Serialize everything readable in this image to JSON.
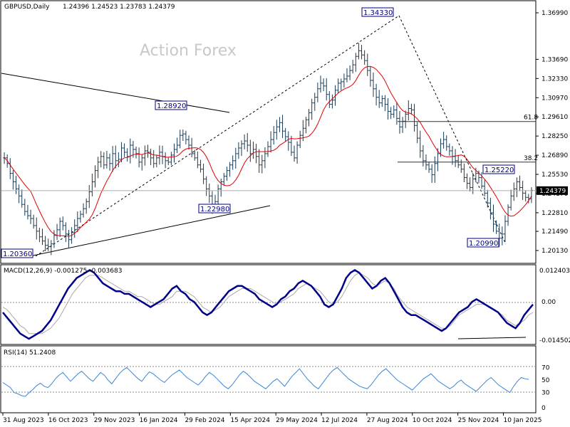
{
  "header": {
    "symbol": "GBPUSD,Daily",
    "ohlc": "1.24396 1.24523 1.23783 1.24379"
  },
  "watermark": "Action Forex",
  "colors": {
    "price_bars": "#1a3a52",
    "ma": "#e00000",
    "macd_line": "#00008b",
    "macd_signal": "#a9a9a9",
    "rsi_line": "#3a86d6",
    "level_box": "#000080"
  },
  "chart_data": [
    {
      "type": "bar",
      "name": "price",
      "y_ticks": [
        "1.36990",
        "1.33690",
        "1.32330",
        "1.30970",
        "1.29610",
        "1.28250",
        "1.26890",
        "1.25530",
        "1.24170",
        "1.22810",
        "1.21490",
        "1.20130"
      ],
      "ylim": [
        1.2013,
        1.3699
      ],
      "last_price_label": "1.24379",
      "last_price": 1.24379,
      "x_ticks": [
        "31 Aug 2023",
        "16 Oct 2023",
        "29 Nov 2023",
        "16 Jan 2024",
        "29 Feb 2024",
        "15 Apr 2024",
        "29 May 2024",
        "12 Jul 2024",
        "27 Aug 2024",
        "10 Oct 2024",
        "25 Nov 2024",
        "10 Jan 2025"
      ],
      "closes": [
        1.267,
        1.263,
        1.256,
        1.25,
        1.245,
        1.24,
        1.234,
        1.229,
        1.226,
        1.224,
        1.219,
        1.215,
        1.211,
        1.208,
        1.205,
        1.204,
        1.206,
        1.212,
        1.216,
        1.222,
        1.219,
        1.213,
        1.209,
        1.214,
        1.219,
        1.224,
        1.227,
        1.231,
        1.236,
        1.243,
        1.25,
        1.258,
        1.264,
        1.268,
        1.262,
        1.267,
        1.263,
        1.27,
        1.265,
        1.266,
        1.274,
        1.271,
        1.268,
        1.276,
        1.273,
        1.27,
        1.264,
        1.267,
        1.272,
        1.271,
        1.267,
        1.263,
        1.267,
        1.271,
        1.268,
        1.265,
        1.264,
        1.269,
        1.273,
        1.276,
        1.283,
        1.284,
        1.28,
        1.276,
        1.27,
        1.267,
        1.262,
        1.259,
        1.252,
        1.245,
        1.24,
        1.233,
        1.236,
        1.245,
        1.25,
        1.254,
        1.258,
        1.262,
        1.265,
        1.27,
        1.274,
        1.277,
        1.279,
        1.276,
        1.27,
        1.273,
        1.268,
        1.262,
        1.265,
        1.27,
        1.275,
        1.28,
        1.285,
        1.289,
        1.292,
        1.286,
        1.282,
        1.278,
        1.271,
        1.267,
        1.276,
        1.283,
        1.288,
        1.294,
        1.299,
        1.306,
        1.31,
        1.316,
        1.32,
        1.318,
        1.312,
        1.305,
        1.308,
        1.315,
        1.32,
        1.321,
        1.323,
        1.325,
        1.329,
        1.333,
        1.339,
        1.343,
        1.34,
        1.336,
        1.329,
        1.322,
        1.316,
        1.31,
        1.306,
        1.309,
        1.305,
        1.3,
        1.298,
        1.301,
        1.295,
        1.289,
        1.293,
        1.298,
        1.302,
        1.301,
        1.29,
        1.281,
        1.272,
        1.265,
        1.262,
        1.259,
        1.255,
        1.263,
        1.27,
        1.277,
        1.28,
        1.275,
        1.272,
        1.268,
        1.265,
        1.262,
        1.259,
        1.253,
        1.249,
        1.246,
        1.252,
        1.256,
        1.253,
        1.247,
        1.242,
        1.235,
        1.228,
        1.22,
        1.215,
        1.21,
        1.213,
        1.222,
        1.232,
        1.24,
        1.245,
        1.25,
        1.246,
        1.242,
        1.239,
        1.238,
        1.244
      ],
      "levels": [
        {
          "label": "1.34330",
          "value": 1.3433
        },
        {
          "label": "1.28920",
          "value": 1.2892
        },
        {
          "label": "1.22980",
          "value": 1.2298
        },
        {
          "label": "1.20360",
          "value": 1.2036
        },
        {
          "label": "1.25220",
          "value": 1.2522
        },
        {
          "label": "1.20990",
          "value": 1.2099
        }
      ],
      "fib_levels": [
        {
          "label": "61.8",
          "value": 1.2928
        },
        {
          "label": "38.2",
          "value": 1.264
        }
      ]
    },
    {
      "type": "line",
      "name": "MACD",
      "label": "MACD(12,26,9) -0.001275 -0.003683",
      "y_ticks": [
        "0.012403",
        "0.00",
        "-0.014502"
      ],
      "ylim": [
        -0.0145,
        0.0124
      ],
      "zero_label": "0.00",
      "values": [
        -0.004,
        -0.006,
        -0.008,
        -0.01,
        -0.012,
        -0.013,
        -0.014,
        -0.013,
        -0.012,
        -0.011,
        -0.009,
        -0.007,
        -0.004,
        -0.001,
        0.002,
        0.005,
        0.007,
        0.009,
        0.01,
        0.011,
        0.012,
        0.011,
        0.009,
        0.007,
        0.006,
        0.005,
        0.004,
        0.004,
        0.003,
        0.003,
        0.002,
        0.001,
        0.0,
        -0.001,
        -0.002,
        -0.001,
        0.0,
        0.001,
        0.003,
        0.005,
        0.006,
        0.004,
        0.003,
        0.001,
        0.0,
        -0.002,
        -0.004,
        -0.005,
        -0.004,
        -0.002,
        0.0,
        0.002,
        0.004,
        0.005,
        0.006,
        0.006,
        0.005,
        0.004,
        0.003,
        0.001,
        0.0,
        -0.001,
        -0.002,
        -0.001,
        0.001,
        0.002,
        0.004,
        0.005,
        0.007,
        0.008,
        0.007,
        0.006,
        0.004,
        0.002,
        -0.001,
        -0.002,
        -0.001,
        0.002,
        0.005,
        0.009,
        0.011,
        0.012,
        0.011,
        0.009,
        0.007,
        0.005,
        0.006,
        0.008,
        0.009,
        0.007,
        0.004,
        0.001,
        -0.002,
        -0.004,
        -0.005,
        -0.005,
        -0.006,
        -0.007,
        -0.008,
        -0.009,
        -0.01,
        -0.011,
        -0.01,
        -0.008,
        -0.006,
        -0.004,
        -0.003,
        -0.002,
        0.0,
        0.001,
        0.0,
        -0.001,
        -0.002,
        -0.003,
        -0.004,
        -0.006,
        -0.008,
        -0.009,
        -0.01,
        -0.008,
        -0.005,
        -0.003,
        -0.001
      ],
      "signal": [
        -0.002,
        -0.003,
        -0.005,
        -0.007,
        -0.009,
        -0.01,
        -0.012,
        -0.012,
        -0.012,
        -0.012,
        -0.011,
        -0.01,
        -0.008,
        -0.006,
        -0.003,
        0.0,
        0.003,
        0.005,
        0.007,
        0.009,
        0.01,
        0.01,
        0.01,
        0.009,
        0.008,
        0.007,
        0.006,
        0.005,
        0.004,
        0.004,
        0.003,
        0.002,
        0.002,
        0.001,
        0.0,
        -0.001,
        -0.001,
        0.0,
        0.001,
        0.002,
        0.004,
        0.004,
        0.004,
        0.003,
        0.002,
        0.0,
        -0.002,
        -0.003,
        -0.004,
        -0.003,
        -0.002,
        0.0,
        0.002,
        0.003,
        0.004,
        0.005,
        0.005,
        0.005,
        0.004,
        0.003,
        0.002,
        0.001,
        0.0,
        -0.001,
        0.0,
        0.001,
        0.002,
        0.003,
        0.005,
        0.006,
        0.007,
        0.006,
        0.005,
        0.004,
        0.002,
        0.0,
        -0.001,
        0.0,
        0.002,
        0.005,
        0.008,
        0.01,
        0.011,
        0.01,
        0.009,
        0.007,
        0.006,
        0.007,
        0.008,
        0.007,
        0.005,
        0.002,
        0.0,
        -0.002,
        -0.003,
        -0.004,
        -0.005,
        -0.006,
        -0.007,
        -0.008,
        -0.009,
        -0.01,
        -0.01,
        -0.009,
        -0.007,
        -0.005,
        -0.004,
        -0.003,
        -0.002,
        -0.001,
        -0.001,
        -0.001,
        -0.002,
        -0.003,
        -0.004,
        -0.005,
        -0.007,
        -0.008,
        -0.009,
        -0.008,
        -0.007,
        -0.005,
        -0.004
      ]
    },
    {
      "type": "line",
      "name": "RSI",
      "label": "RSI(14) 51.2408",
      "y_ticks": [
        "70",
        "50",
        "30",
        "0"
      ],
      "ylim": [
        0,
        100
      ],
      "values": [
        46,
        42,
        38,
        30,
        28,
        25,
        24,
        30,
        35,
        41,
        45,
        40,
        38,
        44,
        52,
        58,
        62,
        55,
        48,
        54,
        60,
        64,
        58,
        52,
        48,
        55,
        62,
        58,
        50,
        44,
        52,
        60,
        66,
        70,
        64,
        58,
        52,
        48,
        56,
        63,
        60,
        55,
        50,
        46,
        52,
        58,
        62,
        66,
        60,
        54,
        50,
        46,
        42,
        48,
        56,
        62,
        58,
        52,
        46,
        40,
        36,
        42,
        50,
        58,
        64,
        60,
        54,
        48,
        44,
        40,
        36,
        42,
        48,
        52,
        46,
        40,
        48,
        56,
        62,
        68,
        60,
        52,
        46,
        40,
        36,
        44,
        52,
        60,
        66,
        70,
        64,
        58,
        52,
        48,
        44,
        40,
        38,
        36,
        42,
        50,
        58,
        64,
        68,
        62,
        56,
        50,
        46,
        42,
        38,
        34,
        40,
        46,
        52,
        56,
        60,
        54,
        48,
        44,
        40,
        36,
        40,
        46,
        50,
        44,
        40,
        36,
        32,
        38,
        44,
        50,
        54,
        48,
        42,
        38,
        34,
        30,
        40,
        48,
        54,
        52,
        51
      ]
    }
  ]
}
